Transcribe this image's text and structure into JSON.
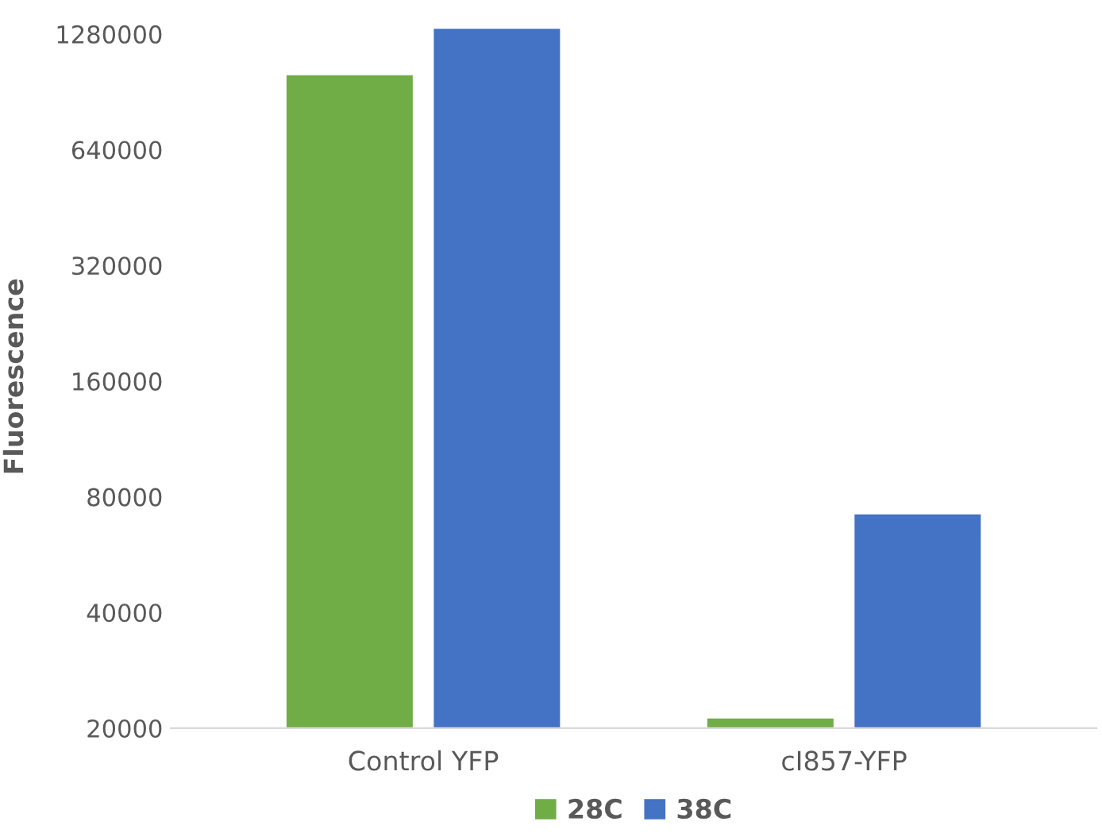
{
  "chart_data": {
    "type": "bar",
    "ylabel": "Fluorescence",
    "categories": [
      "Control YFP",
      "cI857-YFP"
    ],
    "series": [
      {
        "name": "28C",
        "color": "#70ad47",
        "values": [
          1000000,
          21200
        ]
      },
      {
        "name": "38C",
        "color": "#4472c4",
        "values": [
          1320000,
          72000
        ]
      }
    ],
    "log": true,
    "ylim": [
      20000,
      1350000
    ],
    "yticks": [
      20000,
      40000,
      80000,
      160000,
      320000,
      640000,
      1280000
    ],
    "grid": false,
    "legend": "bottom"
  }
}
